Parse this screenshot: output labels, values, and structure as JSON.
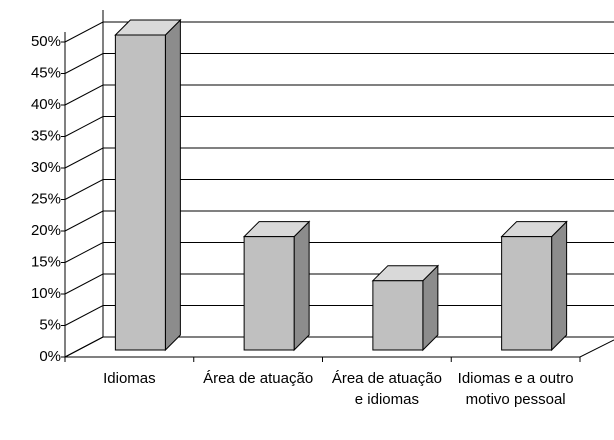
{
  "chart_data": {
    "type": "bar3d",
    "categories": [
      "Idiomas",
      "Área de atuação",
      "Área de atuação e idiomas",
      "Idiomas e a outro motivo pessoal"
    ],
    "values": [
      50,
      18,
      11,
      18
    ],
    "color": "#c0c0c0",
    "ylim": [
      0,
      50
    ],
    "yticks": [
      {
        "value": 0,
        "label": "0%"
      },
      {
        "value": 5,
        "label": "5%"
      },
      {
        "value": 10,
        "label": "10%"
      },
      {
        "value": 15,
        "label": "15%"
      },
      {
        "value": 20,
        "label": "20%"
      },
      {
        "value": 25,
        "label": "25%"
      },
      {
        "value": 30,
        "label": "30%"
      },
      {
        "value": 35,
        "label": "35%"
      },
      {
        "value": 40,
        "label": "40%"
      },
      {
        "value": 45,
        "label": "45%"
      },
      {
        "value": 50,
        "label": "50%"
      }
    ],
    "grid": true
  }
}
